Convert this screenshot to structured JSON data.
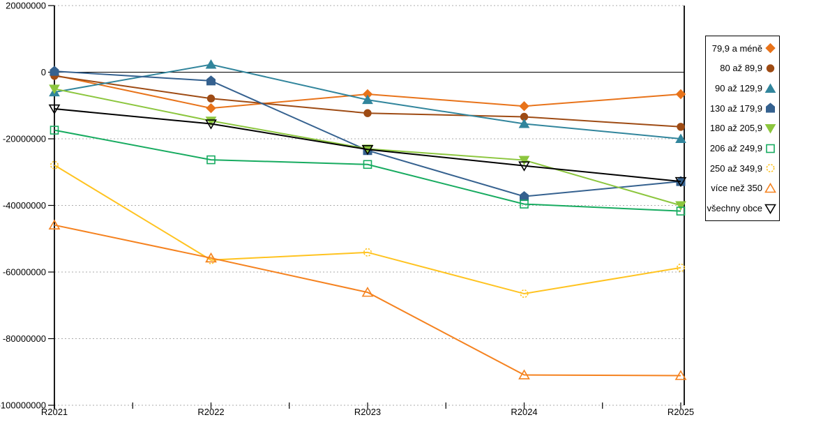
{
  "chart_data": {
    "type": "line",
    "title": "",
    "xlabel": "",
    "ylabel": "",
    "grid": "horizontal dotted gridlines, solid black zero line",
    "legend_position": "right",
    "categories": [
      "R2021",
      "R2022",
      "R2023",
      "R2024",
      "R2025"
    ],
    "ylim": [
      -100000000,
      20000000
    ],
    "ytick_labels": [
      "20000000",
      "0",
      "-20000000",
      "-40000000",
      "-60000000",
      "-80000000",
      "-100000000"
    ],
    "series": [
      {
        "name": "79,9 a méně",
        "marker": "diamond",
        "fill": "solid",
        "marker_dash": false,
        "color": "#E8731A",
        "values": [
          -900000,
          -10800000,
          -6600000,
          -10200000,
          -6600000
        ]
      },
      {
        "name": "80 až 89,9",
        "marker": "circle",
        "fill": "solid",
        "marker_dash": false,
        "color": "#9E4B14",
        "values": [
          -1100000,
          -7900000,
          -12300000,
          -13400000,
          -16400000
        ]
      },
      {
        "name": "90 až 129,9",
        "marker": "triangle-up",
        "fill": "solid",
        "marker_dash": false,
        "color": "#31859C",
        "values": [
          -6000000,
          2300000,
          -8300000,
          -15500000,
          -20000000
        ]
      },
      {
        "name": "130 až 179,9",
        "marker": "pentagon",
        "fill": "solid",
        "marker_dash": false,
        "color": "#35618F",
        "values": [
          300000,
          -2600000,
          -23500000,
          -37300000,
          -32800000
        ]
      },
      {
        "name": "180 až 205,9",
        "marker": "triangle-down",
        "fill": "solid",
        "marker_dash": false,
        "color": "#8CC63E",
        "values": [
          -5000000,
          -14600000,
          -23000000,
          -26400000,
          -40000000
        ]
      },
      {
        "name": "206 až 249,9",
        "marker": "square",
        "fill": "open",
        "marker_dash": false,
        "color": "#17AB60",
        "values": [
          -17400000,
          -26300000,
          -27700000,
          -39600000,
          -41700000
        ]
      },
      {
        "name": "250 až 349,9",
        "marker": "circle",
        "fill": "open",
        "marker_dash": true,
        "color": "#FFC320",
        "values": [
          -27900000,
          -56400000,
          -54100000,
          -66500000,
          -58700000
        ]
      },
      {
        "name": "více než 350",
        "marker": "triangle-up",
        "fill": "open",
        "marker_dash": false,
        "color": "#F5821F",
        "values": [
          -45900000,
          -55800000,
          -66100000,
          -90900000,
          -91100000
        ]
      },
      {
        "name": "všechny obce",
        "marker": "triangle-down",
        "fill": "open",
        "marker_dash": false,
        "color": "#000000",
        "values": [
          -11000000,
          -15500000,
          -23200000,
          -28100000,
          -32800000
        ]
      }
    ]
  }
}
